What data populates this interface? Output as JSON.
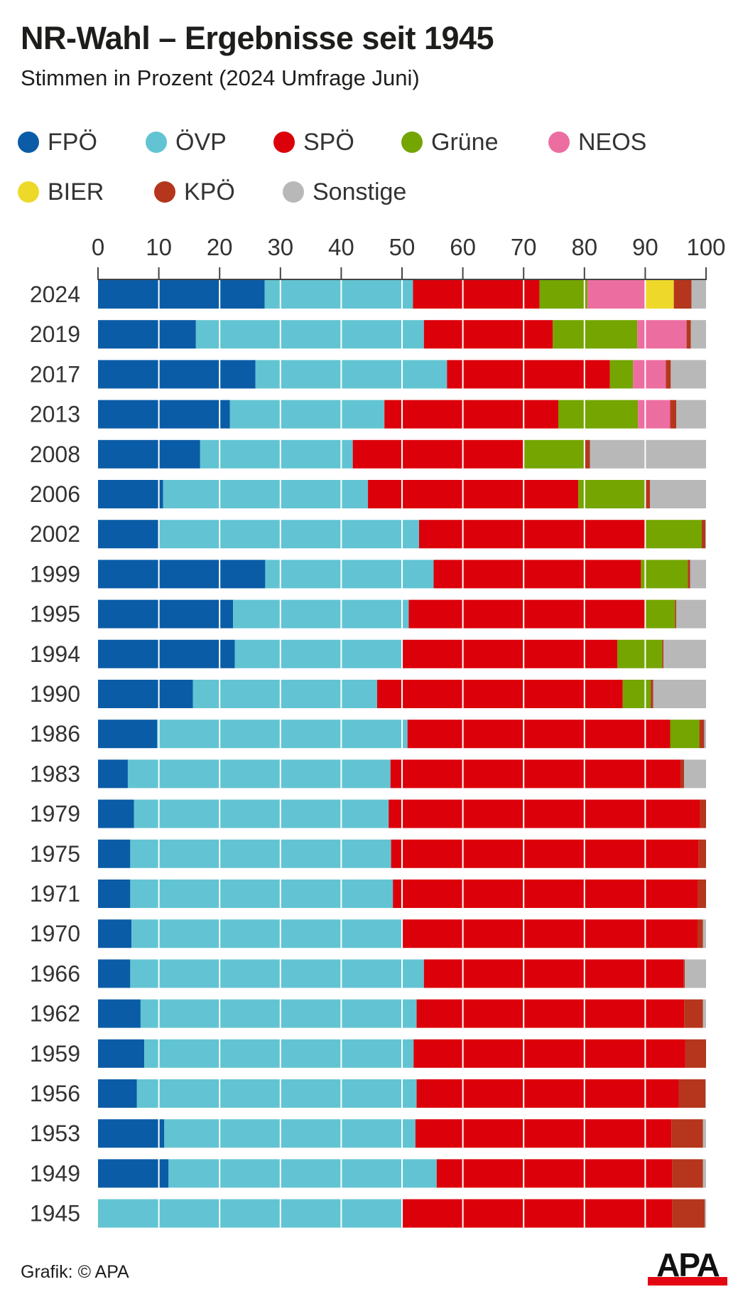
{
  "header": {
    "title": "NR-Wahl – Ergebnisse seit 1945",
    "subtitle": "Stimmen in Prozent (2024 Umfrage Juni)"
  },
  "legend": [
    {
      "label": "FPÖ",
      "color": "#0b5ca6"
    },
    {
      "label": "ÖVP",
      "color": "#62c4d2"
    },
    {
      "label": "SPÖ",
      "color": "#dc000b"
    },
    {
      "label": "Grüne",
      "color": "#74a500"
    },
    {
      "label": "NEOS",
      "color": "#ec6ea1"
    },
    {
      "label": "BIER",
      "color": "#eed92b"
    },
    {
      "label": "KPÖ",
      "color": "#b5361c"
    },
    {
      "label": "Sonstige",
      "color": "#b8b8b9"
    }
  ],
  "footer": {
    "credit": "Grafik: © APA",
    "logo_text": "APA"
  },
  "chart_data": {
    "type": "bar",
    "orientation": "horizontal",
    "stacked": true,
    "title": "NR-Wahl – Ergebnisse seit 1945",
    "subtitle": "Stimmen in Prozent (2024 Umfrage Juni)",
    "xlabel": "",
    "ylabel": "",
    "xlim": [
      0,
      100
    ],
    "xticks": [
      0,
      10,
      20,
      30,
      40,
      50,
      60,
      70,
      80,
      90,
      100
    ],
    "grid": true,
    "legend_position": "top",
    "categories": [
      "2024",
      "2019",
      "2017",
      "2013",
      "2008",
      "2006",
      "2002",
      "1999",
      "1995",
      "1994",
      "1990",
      "1986",
      "1983",
      "1979",
      "1975",
      "1971",
      "1970",
      "1966",
      "1962",
      "1959",
      "1956",
      "1953",
      "1949",
      "1945"
    ],
    "series": [
      {
        "name": "FPÖ",
        "color": "#0b5ca6",
        "values": [
          27.4,
          16.1,
          25.9,
          21.7,
          16.8,
          10.7,
          9.9,
          27.5,
          22.2,
          22.5,
          15.6,
          9.7,
          4.9,
          5.9,
          5.3,
          5.3,
          5.5,
          5.3,
          7.0,
          7.6,
          6.4,
          10.9,
          11.6,
          0
        ]
      },
      {
        "name": "ÖVP",
        "color": "#62c4d2",
        "values": [
          24.4,
          37.5,
          31.5,
          25.4,
          25.1,
          33.7,
          42.9,
          27.7,
          28.9,
          27.6,
          30.3,
          41.2,
          43.2,
          41.9,
          42.9,
          43.2,
          44.6,
          48.3,
          45.4,
          44.3,
          46.0,
          41.3,
          44.1,
          49.9
        ]
      },
      {
        "name": "SPÖ",
        "color": "#dc000b",
        "values": [
          20.8,
          21.2,
          26.8,
          28.6,
          28.2,
          34.6,
          37.1,
          34.1,
          38.9,
          35.3,
          40.4,
          43.2,
          47.7,
          51.2,
          50.6,
          50.1,
          48.5,
          42.7,
          44.0,
          44.7,
          43.1,
          42.1,
          38.7,
          44.5
        ]
      },
      {
        "name": "Grüne",
        "color": "#74a500",
        "values": [
          7.9,
          13.9,
          3.8,
          13.1,
          10.0,
          11.0,
          9.4,
          7.7,
          4.9,
          7.4,
          4.6,
          4.8,
          0,
          0,
          0,
          0,
          0,
          0,
          0,
          0,
          0,
          0,
          0,
          0
        ]
      },
      {
        "name": "NEOS",
        "color": "#ec6ea1",
        "values": [
          9.5,
          8.1,
          5.4,
          5.3,
          0,
          0,
          0,
          0,
          0,
          0,
          0,
          0,
          0,
          0,
          0,
          0,
          0,
          0,
          0,
          0,
          0,
          0,
          0,
          0
        ]
      },
      {
        "name": "BIER",
        "color": "#eed92b",
        "values": [
          4.7,
          0,
          0,
          0,
          0,
          0,
          0,
          0,
          0,
          0,
          0,
          0,
          0,
          0,
          0,
          0,
          0,
          0,
          0,
          0,
          0,
          0,
          0,
          0
        ]
      },
      {
        "name": "KPÖ",
        "color": "#b5361c",
        "values": [
          2.9,
          0.7,
          0.8,
          1.0,
          0.8,
          0.8,
          0.6,
          0.4,
          0.2,
          0.2,
          0.4,
          0.8,
          0.6,
          1.0,
          1.2,
          1.4,
          0.9,
          0.2,
          3.1,
          3.4,
          4.4,
          5.2,
          5.1,
          5.4
        ]
      },
      {
        "name": "Sonstige",
        "color": "#b8b8b9",
        "values": [
          2.4,
          2.5,
          5.8,
          4.9,
          19.1,
          9.2,
          0.1,
          2.6,
          4.9,
          7.0,
          8.7,
          0.3,
          3.6,
          0,
          0,
          0,
          0.5,
          3.5,
          0.5,
          0,
          0.1,
          0.5,
          0.5,
          0.2
        ]
      }
    ]
  }
}
